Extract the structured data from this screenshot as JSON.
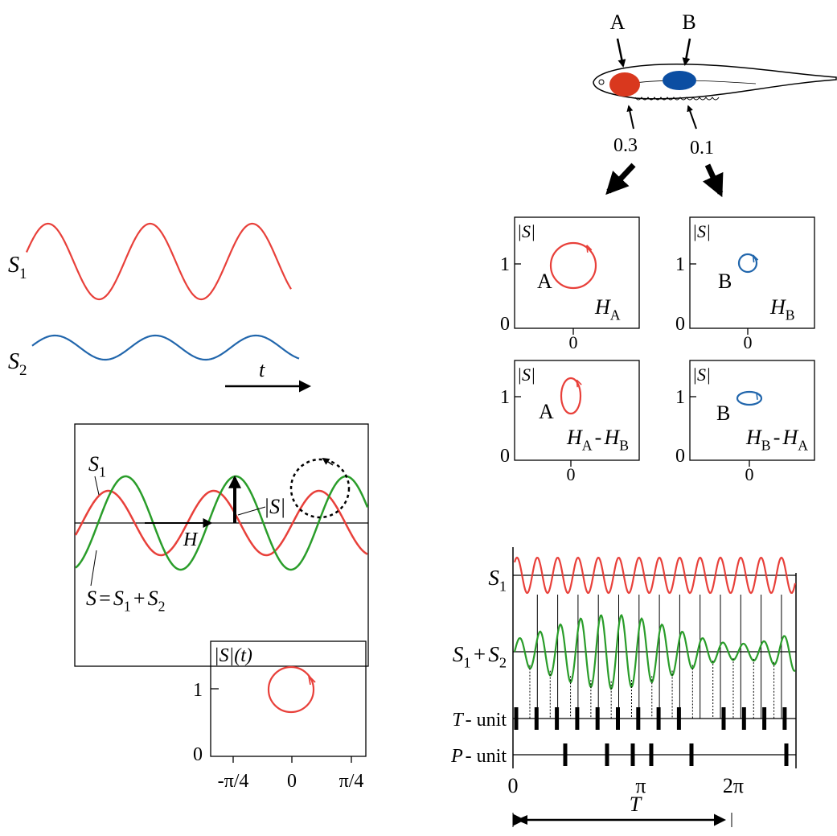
{
  "waves": {
    "s1": [
      "S",
      "1"
    ],
    "s2": [
      "S",
      "2"
    ],
    "time": "t"
  },
  "sum_panel": {
    "s1": [
      "S",
      "1"
    ],
    "amplitude": "|S|",
    "phase": "H",
    "sum": [
      "S",
      "=",
      "S",
      "1",
      "+",
      "S",
      "2"
    ]
  },
  "envelope_plot": {
    "y_label": "|S|(t)",
    "yticks": [
      "1",
      "0"
    ],
    "xticks": [
      "-π/4",
      "0",
      "π/4"
    ]
  },
  "fish": {
    "labels": [
      "A",
      "B"
    ],
    "values": [
      "0.3",
      "0.1"
    ]
  },
  "panels": [
    {
      "y_label": "|S|",
      "yticks": [
        "1",
        "0"
      ],
      "xtick": "0",
      "point": "A",
      "label": [
        "H",
        "A"
      ]
    },
    {
      "y_label": "|S|",
      "yticks": [
        "1",
        "0"
      ],
      "xtick": "0",
      "point": "B",
      "label": [
        "H",
        "B"
      ]
    },
    {
      "y_label": "|S|",
      "yticks": [
        "1",
        "0"
      ],
      "xtick": "0",
      "point": "A",
      "label": [
        "H",
        "A",
        "-",
        "H",
        "B"
      ]
    },
    {
      "y_label": "|S|",
      "yticks": [
        "1",
        "0"
      ],
      "xtick": "0",
      "point": "B",
      "label": [
        "H",
        "B",
        "-",
        "H",
        "A"
      ]
    }
  ],
  "timing": {
    "rows": [
      [
        "S",
        "1"
      ],
      [
        "S",
        "1",
        "+",
        "S",
        "2"
      ],
      [
        "T",
        "- unit"
      ],
      [
        "P",
        "- unit"
      ]
    ],
    "xticks": [
      "0",
      "π",
      "2π"
    ],
    "period": "T"
  }
}
